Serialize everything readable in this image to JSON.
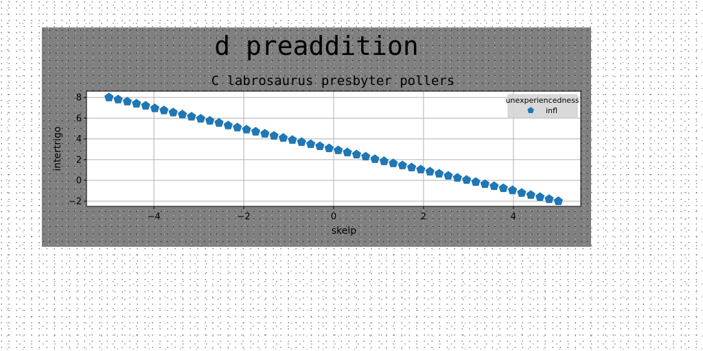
{
  "chart_data": {
    "type": "scatter",
    "title": "d preaddition",
    "subtitle": "C labrosaurus presbyter pollers",
    "xlabel": "skelp",
    "ylabel": "intertrigo",
    "xlim": [
      -5.5,
      5.5
    ],
    "ylim": [
      -2.5,
      8.6
    ],
    "xticks": [
      -4,
      -2,
      0,
      2,
      4
    ],
    "yticks": [
      -2,
      0,
      2,
      4,
      6,
      8
    ],
    "grid": true,
    "legend": {
      "title": "unexperiencedness",
      "placement": "top-right"
    },
    "series": [
      {
        "name": "infl",
        "color": "#1f77b4",
        "marker": "pentagon",
        "x": [
          -5.0,
          -4.796,
          -4.592,
          -4.388,
          -4.184,
          -3.98,
          -3.776,
          -3.571,
          -3.367,
          -3.163,
          -2.959,
          -2.755,
          -2.551,
          -2.347,
          -2.143,
          -1.939,
          -1.735,
          -1.531,
          -1.327,
          -1.122,
          -0.918,
          -0.714,
          -0.51,
          -0.306,
          -0.102,
          0.102,
          0.306,
          0.51,
          0.714,
          0.918,
          1.122,
          1.327,
          1.531,
          1.735,
          1.939,
          2.143,
          2.347,
          2.551,
          2.755,
          2.959,
          3.163,
          3.367,
          3.571,
          3.776,
          3.98,
          4.184,
          4.388,
          4.592,
          4.796,
          5.0
        ],
        "y": [
          8.0,
          7.8,
          7.6,
          7.4,
          7.2,
          6.95,
          6.75,
          6.55,
          6.35,
          6.15,
          5.95,
          5.75,
          5.55,
          5.3,
          5.1,
          4.9,
          4.7,
          4.5,
          4.3,
          4.1,
          3.9,
          3.7,
          3.5,
          3.3,
          3.1,
          2.9,
          2.7,
          2.5,
          2.3,
          2.05,
          1.85,
          1.65,
          1.45,
          1.25,
          1.05,
          0.85,
          0.65,
          0.45,
          0.25,
          0.05,
          -0.15,
          -0.35,
          -0.55,
          -0.75,
          -0.95,
          -1.2,
          -1.4,
          -1.6,
          -1.8,
          -2.0
        ]
      }
    ]
  }
}
